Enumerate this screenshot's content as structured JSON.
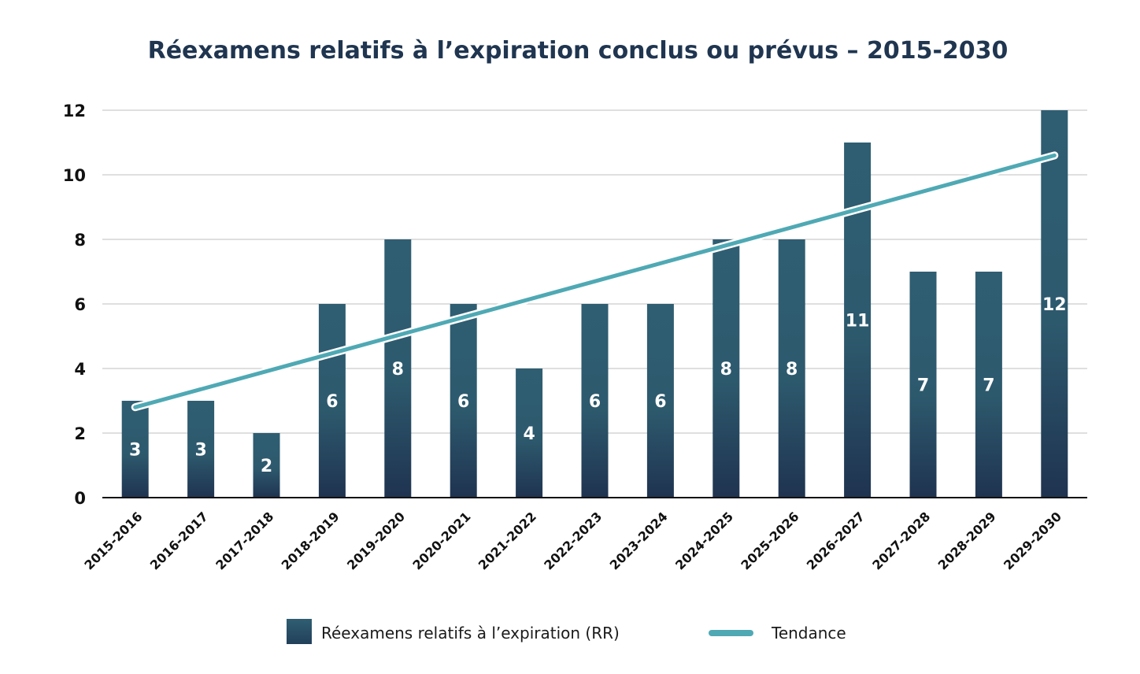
{
  "chart_data": {
    "type": "bar",
    "title": "Réexamens relatifs à l’expiration conclus ou prévus – 2015-2030",
    "xlabel": "",
    "ylabel": "",
    "ylim": [
      0,
      12
    ],
    "yticks": [
      "0",
      "2",
      "4",
      "6",
      "8",
      "10",
      "12"
    ],
    "grid": true,
    "categories": [
      "2015-2016",
      "2016-2017",
      "2017-2018",
      "2018-2019",
      "2019-2020",
      "2020-2021",
      "2021-2022",
      "2022-2023",
      "2023-2024",
      "2024-2025",
      "2025-2026",
      "2026-2027",
      "2027-2028",
      "2028-2029",
      "2029-2030"
    ],
    "series": [
      {
        "name": "Réexamens relatifs à l’expiration (RR)",
        "type": "bar",
        "values": [
          3,
          3,
          2,
          6,
          8,
          6,
          4,
          6,
          6,
          8,
          8,
          11,
          7,
          7,
          12
        ],
        "labels": [
          "3",
          "3",
          "2",
          "6",
          "8",
          "6",
          "4",
          "6",
          "6",
          "8",
          "8",
          "11",
          "7",
          "7",
          "12"
        ],
        "color": "#2e5a6e"
      },
      {
        "name": "Tendance",
        "type": "line",
        "start": 2.8,
        "end": 10.6,
        "color": "#4fa9b4"
      }
    ],
    "legend_position": "bottom"
  }
}
